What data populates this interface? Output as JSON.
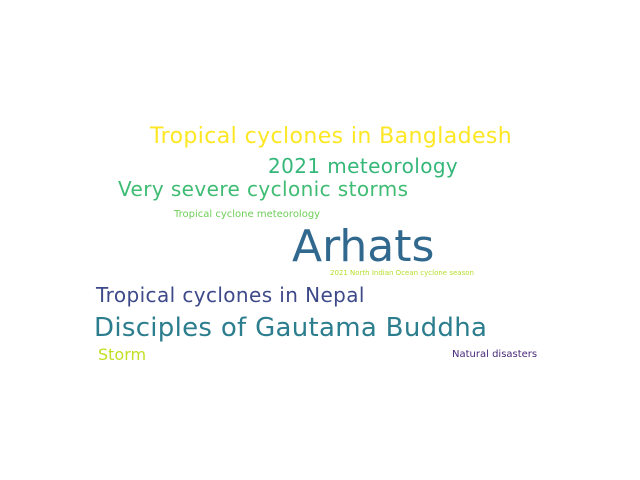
{
  "word_cloud": {
    "words": [
      {
        "text": "Tropical cyclones in Bangladesh",
        "color": "#fde725"
      },
      {
        "text": "2021 meteorology",
        "color": "#35b779"
      },
      {
        "text": "Very severe cyclonic storms",
        "color": "#3fbc73"
      },
      {
        "text": "Tropical cyclone meteorology",
        "color": "#6ece58"
      },
      {
        "text": "Arhats",
        "color": "#31688e"
      },
      {
        "text": "2021 North Indian Ocean cyclone season",
        "color": "#b5de2b"
      },
      {
        "text": "Tropical cyclones in Nepal",
        "color": "#3e4989"
      },
      {
        "text": "Disciples of Gautama Buddha",
        "color": "#2c7e8e"
      },
      {
        "text": "Storm",
        "color": "#c2df23"
      },
      {
        "text": "Natural disasters",
        "color": "#482878"
      }
    ]
  }
}
